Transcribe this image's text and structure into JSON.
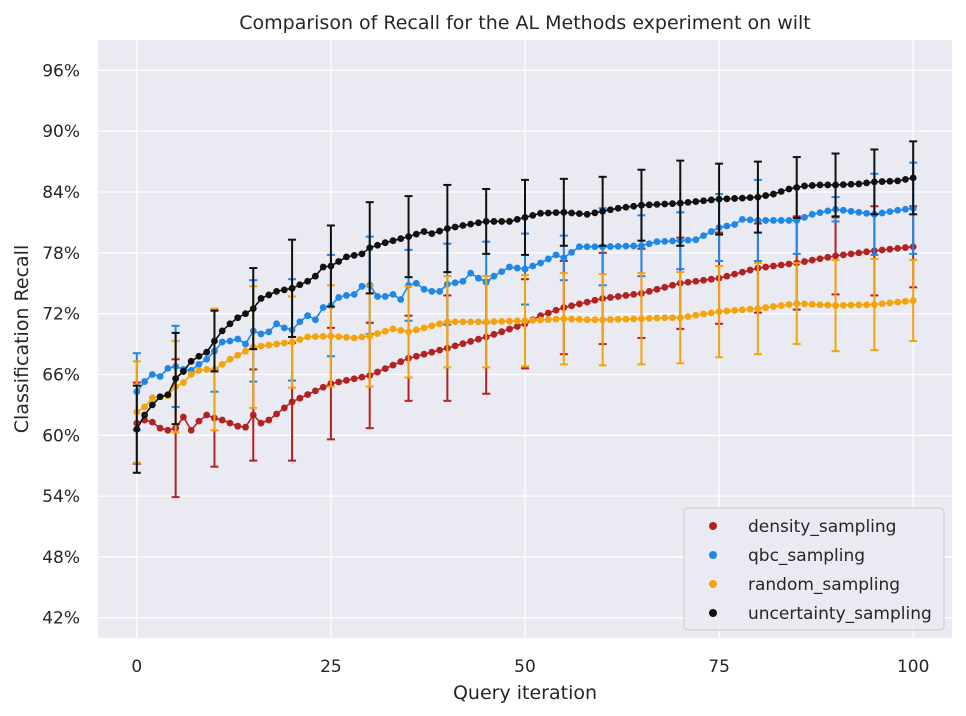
{
  "chart_data": {
    "type": "scatter",
    "title": "Comparison of Recall for the AL Methods experiment on wilt",
    "xlabel": "Query iteration",
    "ylabel": "Classification Recall",
    "xlim": [
      -5,
      105
    ],
    "ylim": [
      0.4,
      0.99
    ],
    "x_ticks": [
      0,
      25,
      50,
      75,
      100
    ],
    "x_tick_labels": [
      "0",
      "25",
      "50",
      "75",
      "100"
    ],
    "y_ticks": [
      0.42,
      0.48,
      0.54,
      0.6,
      0.66,
      0.72,
      0.78,
      0.84,
      0.9,
      0.96
    ],
    "y_tick_labels": [
      "42%",
      "48%",
      "54%",
      "60%",
      "66%",
      "72%",
      "78%",
      "84%",
      "90%",
      "96%"
    ],
    "grid": true,
    "legend_position": "lower-right",
    "background": "#eaeaf2",
    "series": [
      {
        "name": "density_sampling",
        "color": "#b22222",
        "anchors": [
          [
            0,
            0.612
          ],
          [
            1,
            0.615
          ],
          [
            2,
            0.613
          ],
          [
            3,
            0.607
          ],
          [
            4,
            0.605
          ],
          [
            5,
            0.607
          ],
          [
            6,
            0.618
          ],
          [
            7,
            0.605
          ],
          [
            8,
            0.614
          ],
          [
            9,
            0.62
          ],
          [
            10,
            0.617
          ],
          [
            11,
            0.615
          ],
          [
            12,
            0.612
          ],
          [
            13,
            0.609
          ],
          [
            14,
            0.608
          ],
          [
            15,
            0.62
          ],
          [
            16,
            0.612
          ],
          [
            17,
            0.615
          ],
          [
            20,
            0.633
          ],
          [
            25,
            0.651
          ],
          [
            30,
            0.659
          ],
          [
            35,
            0.676
          ],
          [
            40,
            0.686
          ],
          [
            45,
            0.697
          ],
          [
            50,
            0.71
          ],
          [
            52,
            0.718
          ],
          [
            55,
            0.726
          ],
          [
            60,
            0.735
          ],
          [
            65,
            0.74
          ],
          [
            70,
            0.75
          ],
          [
            75,
            0.755
          ],
          [
            80,
            0.765
          ],
          [
            85,
            0.77
          ],
          [
            90,
            0.777
          ],
          [
            95,
            0.782
          ],
          [
            100,
            0.786
          ]
        ],
        "error_every": 5,
        "error_half_widths": [
          [
            0,
            0.04
          ],
          [
            5,
            0.068
          ],
          [
            10,
            0.048
          ],
          [
            15,
            0.045
          ],
          [
            20,
            0.058
          ],
          [
            25,
            0.055
          ],
          [
            30,
            0.052
          ],
          [
            35,
            0.042
          ],
          [
            40,
            0.052
          ],
          [
            45,
            0.056
          ],
          [
            50,
            0.044
          ],
          [
            55,
            0.046
          ],
          [
            60,
            0.045
          ],
          [
            65,
            0.044
          ],
          [
            70,
            0.045
          ],
          [
            75,
            0.045
          ],
          [
            80,
            0.044
          ],
          [
            85,
            0.046
          ],
          [
            90,
            0.038
          ],
          [
            95,
            0.044
          ],
          [
            100,
            0.04
          ]
        ]
      },
      {
        "name": "qbc_sampling",
        "color": "#1f87e8",
        "anchors": [
          [
            0,
            0.643
          ],
          [
            1,
            0.653
          ],
          [
            2,
            0.66
          ],
          [
            3,
            0.658
          ],
          [
            4,
            0.666
          ],
          [
            5,
            0.668
          ],
          [
            6,
            0.665
          ],
          [
            7,
            0.664
          ],
          [
            8,
            0.67
          ],
          [
            9,
            0.675
          ],
          [
            10,
            0.683
          ],
          [
            11,
            0.692
          ],
          [
            12,
            0.693
          ],
          [
            13,
            0.695
          ],
          [
            14,
            0.69
          ],
          [
            15,
            0.703
          ],
          [
            16,
            0.7
          ],
          [
            17,
            0.702
          ],
          [
            18,
            0.71
          ],
          [
            19,
            0.706
          ],
          [
            20,
            0.704
          ],
          [
            21,
            0.712
          ],
          [
            22,
            0.718
          ],
          [
            23,
            0.714
          ],
          [
            24,
            0.726
          ],
          [
            25,
            0.728
          ],
          [
            26,
            0.736
          ],
          [
            27,
            0.738
          ],
          [
            28,
            0.739
          ],
          [
            29,
            0.747
          ],
          [
            30,
            0.748
          ],
          [
            31,
            0.737
          ],
          [
            32,
            0.737
          ],
          [
            33,
            0.739
          ],
          [
            34,
            0.734
          ],
          [
            35,
            0.748
          ],
          [
            36,
            0.75
          ],
          [
            37,
            0.744
          ],
          [
            38,
            0.742
          ],
          [
            39,
            0.742
          ],
          [
            40,
            0.749
          ],
          [
            42,
            0.752
          ],
          [
            43,
            0.76
          ],
          [
            44,
            0.755
          ],
          [
            45,
            0.751
          ],
          [
            46,
            0.757
          ],
          [
            48,
            0.766
          ],
          [
            50,
            0.764
          ],
          [
            52,
            0.77
          ],
          [
            54,
            0.778
          ],
          [
            55,
            0.775
          ],
          [
            57,
            0.786
          ],
          [
            60,
            0.786
          ],
          [
            65,
            0.787
          ],
          [
            67,
            0.791
          ],
          [
            70,
            0.792
          ],
          [
            72,
            0.793
          ],
          [
            75,
            0.805
          ],
          [
            77,
            0.808
          ],
          [
            78,
            0.813
          ],
          [
            80,
            0.812
          ],
          [
            82,
            0.812
          ],
          [
            85,
            0.812
          ],
          [
            87,
            0.818
          ],
          [
            90,
            0.823
          ],
          [
            92,
            0.821
          ],
          [
            95,
            0.818
          ],
          [
            98,
            0.822
          ],
          [
            100,
            0.824
          ]
        ],
        "error_every": 5,
        "error_half_widths": [
          [
            0,
            0.038
          ],
          [
            5,
            0.04
          ],
          [
            10,
            0.04
          ],
          [
            15,
            0.05
          ],
          [
            20,
            0.05
          ],
          [
            25,
            0.05
          ],
          [
            30,
            0.048
          ],
          [
            35,
            0.035
          ],
          [
            40,
            0.04
          ],
          [
            45,
            0.04
          ],
          [
            50,
            0.035
          ],
          [
            55,
            0.022
          ],
          [
            60,
            0.038
          ],
          [
            65,
            0.03
          ],
          [
            70,
            0.028
          ],
          [
            75,
            0.033
          ],
          [
            80,
            0.04
          ],
          [
            85,
            0.033
          ],
          [
            90,
            0.012
          ],
          [
            95,
            0.04
          ],
          [
            100,
            0.045
          ]
        ]
      },
      {
        "name": "random_sampling",
        "color": "#f5a30a",
        "anchors": [
          [
            0,
            0.623
          ],
          [
            1,
            0.628
          ],
          [
            2,
            0.637
          ],
          [
            3,
            0.638
          ],
          [
            4,
            0.639
          ],
          [
            5,
            0.648
          ],
          [
            6,
            0.652
          ],
          [
            7,
            0.66
          ],
          [
            8,
            0.664
          ],
          [
            9,
            0.665
          ],
          [
            10,
            0.665
          ],
          [
            12,
            0.675
          ],
          [
            15,
            0.687
          ],
          [
            18,
            0.69
          ],
          [
            20,
            0.692
          ],
          [
            22,
            0.697
          ],
          [
            25,
            0.698
          ],
          [
            28,
            0.696
          ],
          [
            30,
            0.698
          ],
          [
            33,
            0.705
          ],
          [
            35,
            0.702
          ],
          [
            38,
            0.708
          ],
          [
            40,
            0.712
          ],
          [
            45,
            0.712
          ],
          [
            50,
            0.713
          ],
          [
            55,
            0.715
          ],
          [
            58,
            0.714
          ],
          [
            60,
            0.714
          ],
          [
            65,
            0.715
          ],
          [
            68,
            0.716
          ],
          [
            70,
            0.716
          ],
          [
            75,
            0.722
          ],
          [
            80,
            0.725
          ],
          [
            85,
            0.73
          ],
          [
            90,
            0.728
          ],
          [
            95,
            0.729
          ],
          [
            100,
            0.733
          ]
        ],
        "error_every": 5,
        "error_half_widths": [
          [
            0,
            0.05
          ],
          [
            5,
            0.045
          ],
          [
            10,
            0.06
          ],
          [
            15,
            0.06
          ],
          [
            20,
            0.045
          ],
          [
            25,
            0.05
          ],
          [
            30,
            0.05
          ],
          [
            35,
            0.045
          ],
          [
            40,
            0.045
          ],
          [
            45,
            0.045
          ],
          [
            50,
            0.045
          ],
          [
            55,
            0.045
          ],
          [
            60,
            0.045
          ],
          [
            65,
            0.045
          ],
          [
            70,
            0.045
          ],
          [
            75,
            0.045
          ],
          [
            80,
            0.045
          ],
          [
            85,
            0.04
          ],
          [
            90,
            0.045
          ],
          [
            95,
            0.045
          ],
          [
            100,
            0.04
          ]
        ]
      },
      {
        "name": "uncertainty_sampling",
        "color": "#111111",
        "anchors": [
          [
            0,
            0.606
          ],
          [
            1,
            0.62
          ],
          [
            2,
            0.63
          ],
          [
            3,
            0.638
          ],
          [
            4,
            0.64
          ],
          [
            5,
            0.656
          ],
          [
            6,
            0.663
          ],
          [
            7,
            0.673
          ],
          [
            8,
            0.678
          ],
          [
            9,
            0.682
          ],
          [
            10,
            0.693
          ],
          [
            11,
            0.703
          ],
          [
            12,
            0.71
          ],
          [
            13,
            0.716
          ],
          [
            14,
            0.72
          ],
          [
            15,
            0.725
          ],
          [
            16,
            0.735
          ],
          [
            18,
            0.742
          ],
          [
            20,
            0.745
          ],
          [
            22,
            0.752
          ],
          [
            23,
            0.757
          ],
          [
            24,
            0.766
          ],
          [
            25,
            0.767
          ],
          [
            27,
            0.776
          ],
          [
            29,
            0.779
          ],
          [
            30,
            0.785
          ],
          [
            32,
            0.79
          ],
          [
            35,
            0.796
          ],
          [
            37,
            0.801
          ],
          [
            38,
            0.799
          ],
          [
            40,
            0.804
          ],
          [
            42,
            0.807
          ],
          [
            45,
            0.811
          ],
          [
            48,
            0.811
          ],
          [
            50,
            0.815
          ],
          [
            52,
            0.819
          ],
          [
            55,
            0.82
          ],
          [
            58,
            0.818
          ],
          [
            60,
            0.821
          ],
          [
            62,
            0.824
          ],
          [
            65,
            0.827
          ],
          [
            70,
            0.829
          ],
          [
            75,
            0.833
          ],
          [
            78,
            0.834
          ],
          [
            80,
            0.835
          ],
          [
            82,
            0.838
          ],
          [
            84,
            0.843
          ],
          [
            86,
            0.846
          ],
          [
            88,
            0.847
          ],
          [
            90,
            0.847
          ],
          [
            93,
            0.848
          ],
          [
            95,
            0.85
          ],
          [
            98,
            0.851
          ],
          [
            100,
            0.854
          ]
        ],
        "error_every": 5,
        "error_half_widths": [
          [
            0,
            0.043
          ],
          [
            5,
            0.045
          ],
          [
            10,
            0.03
          ],
          [
            15,
            0.04
          ],
          [
            20,
            0.048
          ],
          [
            25,
            0.04
          ],
          [
            30,
            0.045
          ],
          [
            35,
            0.04
          ],
          [
            40,
            0.043
          ],
          [
            45,
            0.032
          ],
          [
            50,
            0.037
          ],
          [
            55,
            0.033
          ],
          [
            60,
            0.034
          ],
          [
            65,
            0.035
          ],
          [
            70,
            0.042
          ],
          [
            75,
            0.035
          ],
          [
            80,
            0.035
          ],
          [
            85,
            0.03
          ],
          [
            90,
            0.031
          ],
          [
            95,
            0.032
          ],
          [
            100,
            0.036
          ]
        ]
      }
    ]
  }
}
